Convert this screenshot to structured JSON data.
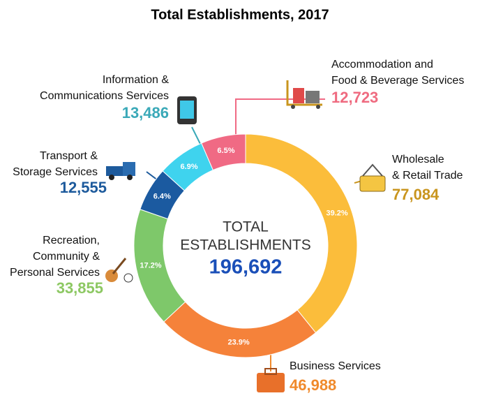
{
  "chart_data": {
    "type": "donut",
    "title": "Total Establishments, 2017",
    "center_lines": [
      "TOTAL",
      "ESTABLISHMENTS"
    ],
    "total": 196692,
    "total_label": "196,692",
    "series": [
      {
        "name_lines": [
          "Wholesale",
          "& Retail Trade"
        ],
        "value": 77084,
        "value_label": "77,084",
        "percent": 39.2,
        "percent_label": "39.2%",
        "color": "#fbbd3b",
        "text_color": "#c9951e"
      },
      {
        "name_lines": [
          "Business Services"
        ],
        "value": 46988,
        "value_label": "46,988",
        "percent": 23.9,
        "percent_label": "23.9%",
        "color": "#f5823a",
        "text_color": "#f08a2c"
      },
      {
        "name_lines": [
          "Recreation,",
          "Community &",
          "Personal Services"
        ],
        "value": 33855,
        "value_label": "33,855",
        "percent": 17.2,
        "percent_label": "17.2%",
        "color": "#7ec86a",
        "text_color": "#8dc863"
      },
      {
        "name_lines": [
          "Transport &",
          "Storage Services"
        ],
        "value": 12555,
        "value_label": "12,555",
        "percent": 6.4,
        "percent_label": "6.4%",
        "color": "#1b5aa0",
        "text_color": "#1d5a9c"
      },
      {
        "name_lines": [
          "Information &",
          "Communications Services"
        ],
        "value": 13486,
        "value_label": "13,486",
        "percent": 6.9,
        "percent_label": "6.9%",
        "color": "#3fd3ee",
        "text_color": "#3aa9b8"
      },
      {
        "name_lines": [
          "Accommodation and",
          "Food & Beverage Services"
        ],
        "value": 12723,
        "value_label": "12,723",
        "percent": 6.5,
        "percent_label": "6.5%",
        "color": "#f06a84",
        "text_color": "#ef6b80"
      }
    ]
  }
}
